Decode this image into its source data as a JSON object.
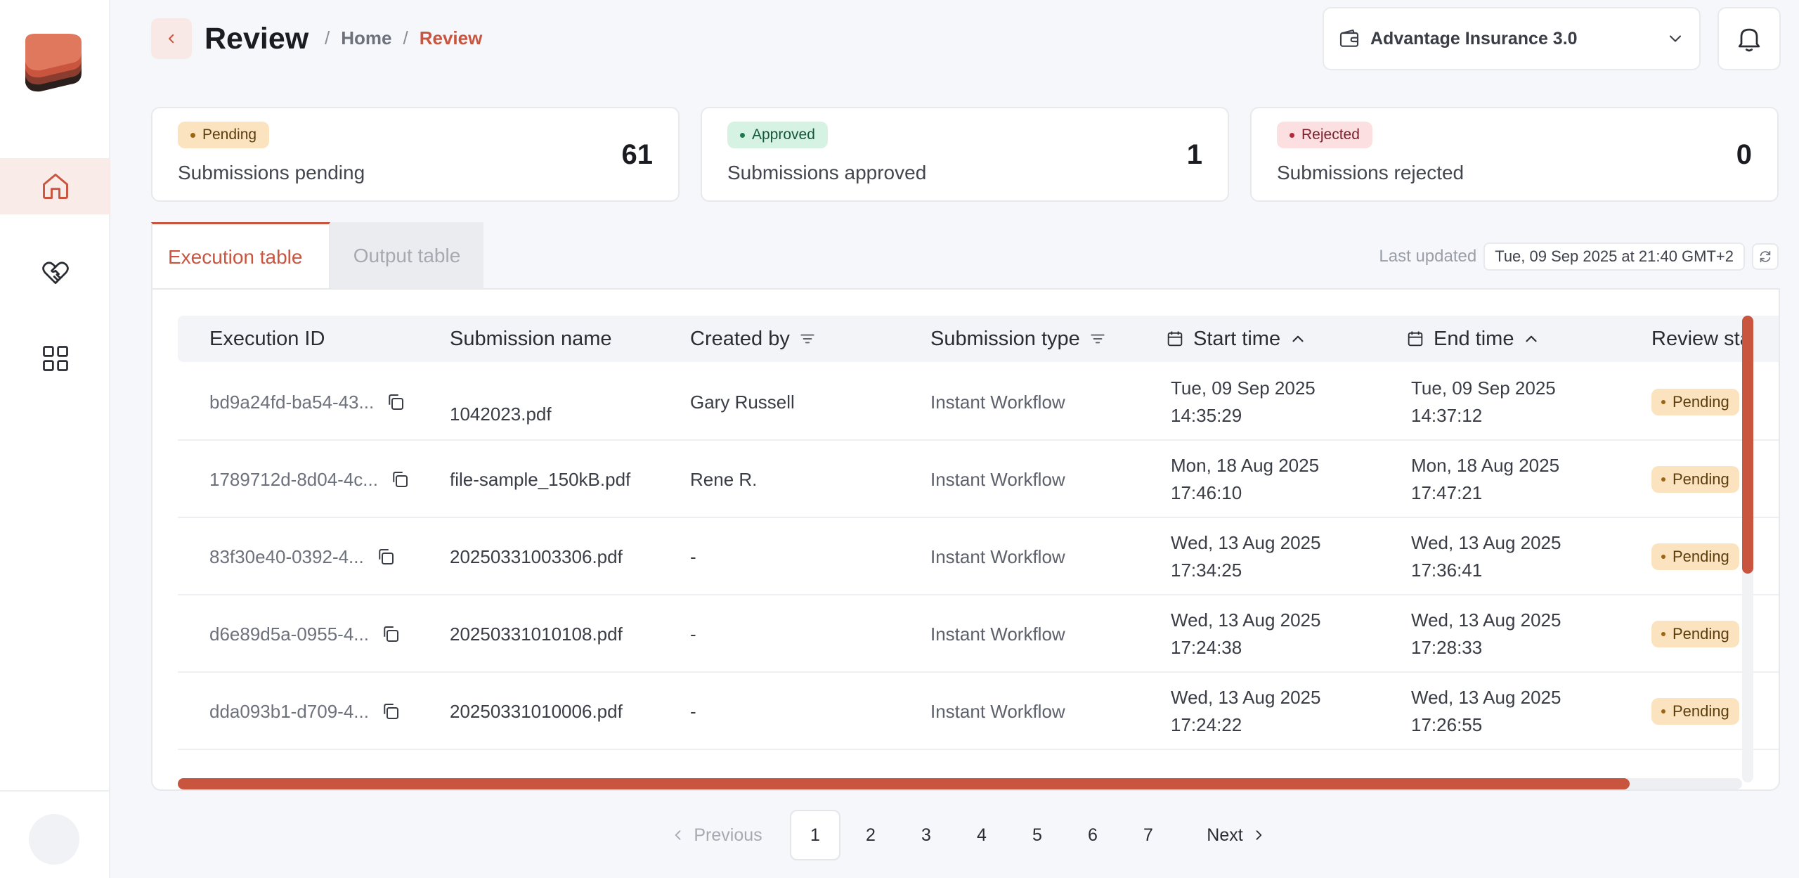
{
  "header": {
    "title": "Review",
    "breadcrumb": {
      "separator": "/",
      "home": "Home",
      "current": "Review"
    },
    "org_selector": {
      "label": "Advantage Insurance 3.0"
    }
  },
  "sidebar": {
    "items": [
      {
        "icon": "home-icon",
        "active": true
      },
      {
        "icon": "handshake-icon",
        "active": false
      },
      {
        "icon": "grid-icon",
        "active": false
      }
    ]
  },
  "stats": [
    {
      "badge": "Pending",
      "label": "Submissions pending",
      "count": "61",
      "badge_bg": "#fbe3c0",
      "dot": "#9b6512",
      "badge_text": "#5c3d0e"
    },
    {
      "badge": "Approved",
      "label": "Submissions approved",
      "count": "1",
      "badge_bg": "#d6f2e2",
      "dot": "#1d7a4a",
      "badge_text": "#15573a"
    },
    {
      "badge": "Rejected",
      "label": "Submissions rejected",
      "count": "0",
      "badge_bg": "#fbdfe1",
      "dot": "#b8283a",
      "badge_text": "#7c1f2b"
    }
  ],
  "tabs": [
    {
      "label": "Execution table",
      "active": true
    },
    {
      "label": "Output table",
      "active": false
    }
  ],
  "last_updated": {
    "label": "Last updated",
    "value": "Tue, 09 Sep 2025 at 21:40 GMT+2"
  },
  "table": {
    "columns": [
      "Execution ID",
      "Submission name",
      "Created by",
      "Submission type",
      "Start time",
      "End time",
      "Review sta"
    ],
    "rows": [
      {
        "id": "bd9a24fd-ba54-43...",
        "name": "1042023.pdf",
        "created_by": "Gary Russell",
        "type": "Instant Workflow",
        "start_date": "Tue, 09 Sep 2025",
        "start_time": "14:35:29",
        "end_date": "Tue, 09 Sep 2025",
        "end_time": "14:37:12",
        "status": "Pending"
      },
      {
        "id": "1789712d-8d04-4c...",
        "name": "file-sample_150kB.pdf",
        "created_by": "Rene R.",
        "type": "Instant Workflow",
        "start_date": "Mon, 18 Aug 2025",
        "start_time": "17:46:10",
        "end_date": "Mon, 18 Aug 2025",
        "end_time": "17:47:21",
        "status": "Pending"
      },
      {
        "id": "83f30e40-0392-4...",
        "name": "20250331003306.pdf",
        "created_by": "-",
        "type": "Instant Workflow",
        "start_date": "Wed, 13 Aug 2025",
        "start_time": "17:34:25",
        "end_date": "Wed, 13 Aug 2025",
        "end_time": "17:36:41",
        "status": "Pending"
      },
      {
        "id": "d6e89d5a-0955-4...",
        "name": "20250331010108.pdf",
        "created_by": "-",
        "type": "Instant Workflow",
        "start_date": "Wed, 13 Aug 2025",
        "start_time": "17:24:38",
        "end_date": "Wed, 13 Aug 2025",
        "end_time": "17:28:33",
        "status": "Pending"
      },
      {
        "id": "dda093b1-d709-4...",
        "name": "20250331010006.pdf",
        "created_by": "-",
        "type": "Instant Workflow",
        "start_date": "Wed, 13 Aug 2025",
        "start_time": "17:24:22",
        "end_date": "Wed, 13 Aug 2025",
        "end_time": "17:26:55",
        "status": "Pending"
      }
    ]
  },
  "pagination": {
    "previous": "Previous",
    "next": "Next",
    "pages": [
      "1",
      "2",
      "3",
      "4",
      "5",
      "6",
      "7"
    ],
    "current": "1"
  },
  "colors": {
    "accent": "#c9553f",
    "accent_soft": "#f8ebe8"
  }
}
